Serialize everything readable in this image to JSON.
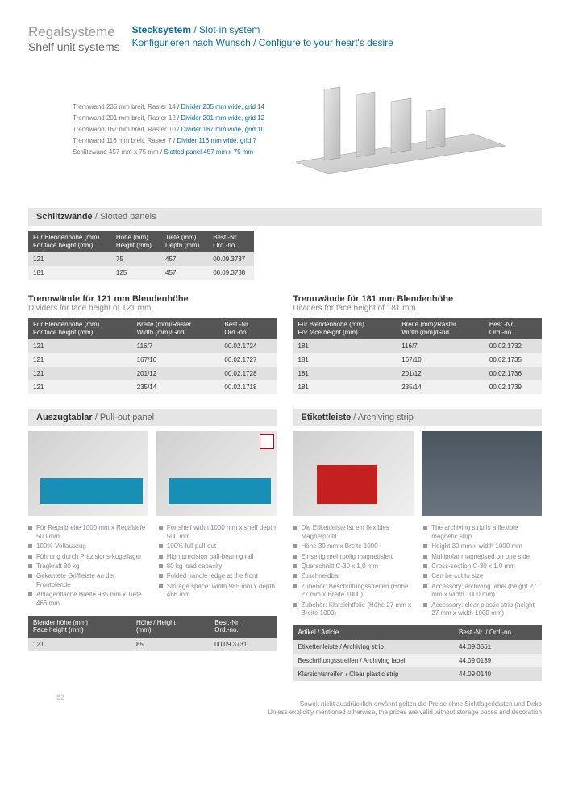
{
  "header": {
    "left_de": "Regalsysteme",
    "left_en": "Shelf unit systems",
    "right1_bold": "Stecksystem",
    "right1_rest": " / Slot-in system",
    "right2": "Konfigurieren nach Wunsch / Configure to your heart's desire"
  },
  "diagram_labels": [
    {
      "de": "Trennwand 235 mm breit, Raster 14",
      "en": " / Divider 235 mm wide, grid 14"
    },
    {
      "de": "Trennwand 201 mm breit, Raster 12",
      "en": " / Divider 201 mm wide, grid 12"
    },
    {
      "de": "Trennwand 167 mm breit, Raster 10",
      "en": " / Divider 167 mm wide, grid 10"
    },
    {
      "de": "Trennwand 116 mm breit, Raster 7",
      "en": " / Divider 116 mm wide, grid 7"
    },
    {
      "de": "Schlitzwand 457 mm x 75 mm",
      "en": " / Slotted panel 457 mm x 75 mm"
    }
  ],
  "slotted": {
    "title_de": "Schlitzwände",
    "title_en": " / Slotted panels",
    "cols": [
      {
        "l1": "Für Blendenhöhe (mm)",
        "l2": "For face height (mm)"
      },
      {
        "l1": "Höhe (mm)",
        "l2": "Height (mm)"
      },
      {
        "l1": "Tiefe (mm)",
        "l2": "Depth (mm)"
      },
      {
        "l1": "Best.-Nr.",
        "l2": "Ord.-no."
      }
    ],
    "rows": [
      [
        "121",
        "75",
        "457",
        "00.09.3737"
      ],
      [
        "181",
        "125",
        "457",
        "00.09.3738"
      ]
    ]
  },
  "dividers121": {
    "head_de": "Trennwände für 121 mm Blendenhöhe",
    "head_en": "Dividers for face height of 121 mm",
    "cols": [
      {
        "l1": "Für Blendenhöhe (mm)",
        "l2": "For face height (mm)"
      },
      {
        "l1": "Breite (mm)/Raster",
        "l2": "Width (mm)/Grid"
      },
      {
        "l1": "Best.-Nr.",
        "l2": "Ord.-no."
      }
    ],
    "rows": [
      [
        "121",
        "116/7",
        "00.02.1724"
      ],
      [
        "121",
        "167/10",
        "00.02.1727"
      ],
      [
        "121",
        "201/12",
        "00.02.1728"
      ],
      [
        "121",
        "235/14",
        "00.02.1718"
      ]
    ]
  },
  "dividers181": {
    "head_de": "Trennwände für 181 mm Blendenhöhe",
    "head_en": "Dividers for face height of 181 mm",
    "cols": [
      {
        "l1": "Für Blendenhöhe (mm)",
        "l2": "For face height (mm)"
      },
      {
        "l1": "Breite (mm)/Raster",
        "l2": "Width (mm)/Grid"
      },
      {
        "l1": "Best.-Nr.",
        "l2": "Ord.-no."
      }
    ],
    "rows": [
      [
        "181",
        "116/7",
        "00.02.1732"
      ],
      [
        "181",
        "167/10",
        "00.02.1735"
      ],
      [
        "181",
        "201/12",
        "00.02.1736"
      ],
      [
        "181",
        "235/14",
        "00.02.1739"
      ]
    ]
  },
  "pullout": {
    "title_de": "Auszugtablar",
    "title_en": " / Pull-out panel",
    "bullets_de": [
      "Für Regalbreite 1000 mm x Regaltiefe 500 mm",
      "100%-Vollauszug",
      "Führung durch Präzisions-kugellager",
      "Tragkraft 80 kg",
      "Gekantete Griffleiste an der Frontblende",
      "Ablagenfläche Breite 985 mm x Tiefe 466 mm"
    ],
    "bullets_en": [
      "For shelf width 1000 mm x shelf depth 500 mm",
      "100% full pull-out",
      "High precision ball-bearing rail",
      "80 kg load capacity",
      "Folded handle ledge at the front",
      "Storage space: width 985 mm x depth 466 mm"
    ],
    "table_cols": [
      {
        "l1": "Blendenhöhe (mm)",
        "l2": "Face height (mm)"
      },
      {
        "l1": "Höhe / Height",
        "l2": "(mm)"
      },
      {
        "l1": "Best.-Nr.",
        "l2": "Ord.-no."
      }
    ],
    "table_rows": [
      [
        "121",
        "85",
        "00.09.3731"
      ]
    ]
  },
  "archiving": {
    "title_de": "Etikettleiste",
    "title_en": " / Archiving strip",
    "bullets_de": [
      "Die Etikettleiste ist ein flexibles Magnetprofil",
      "Höhe 30 mm x Breite 1000",
      "Einseitig mehrpolig magnetisiert",
      "Querschnitt C-30 x 1,0 mm",
      "Zuschneidbar",
      "Zubehör: Beschriftungsstreifen (Höhe 27 mm x Breite 1000)",
      "Zubehör: Klarsichtfolie (Höhe 27 mm x Breite 1000)"
    ],
    "bullets_en": [
      "The archiving strip is a flexible magnetic strip",
      "Height 30 mm x width 1000 mm",
      "Multipolar magnetised on one side",
      "Cross-section C-30 x 1.0 mm",
      "Can be cut to size",
      "Accessory: archiving label (height 27 mm x width 1000 mm)",
      "Accessory: clear plastic strip (height 27 mm x width 1000 mm)"
    ],
    "table_cols": [
      {
        "l1": "Artikel / Article"
      },
      {
        "l1": "Best.-Nr. / Ord.-no."
      }
    ],
    "table_rows": [
      [
        "Etikettenleiste / Archiving strip",
        "44.09.3561"
      ],
      [
        "Beschriftungsstreifen / Archiving label",
        "44.09.0139"
      ],
      [
        "Klarsichtstreifen / Clear plastic strip",
        "44.09.0140"
      ]
    ]
  },
  "footer_de": "Soweit nicht ausdrücklich erwähnt gelten die Preise ohne Sichtlagerkästen und Deko",
  "footer_en": "Unless explicitly mentioned otherwise, the prices are valid without storage boxes and decoration",
  "pagenum": "82",
  "colors": {
    "accent": "#0071a4",
    "thead": "#555555",
    "row_even": "#e0e0e0",
    "row_odd": "#f0f0f0",
    "section_bg": "#e5e5e5"
  }
}
